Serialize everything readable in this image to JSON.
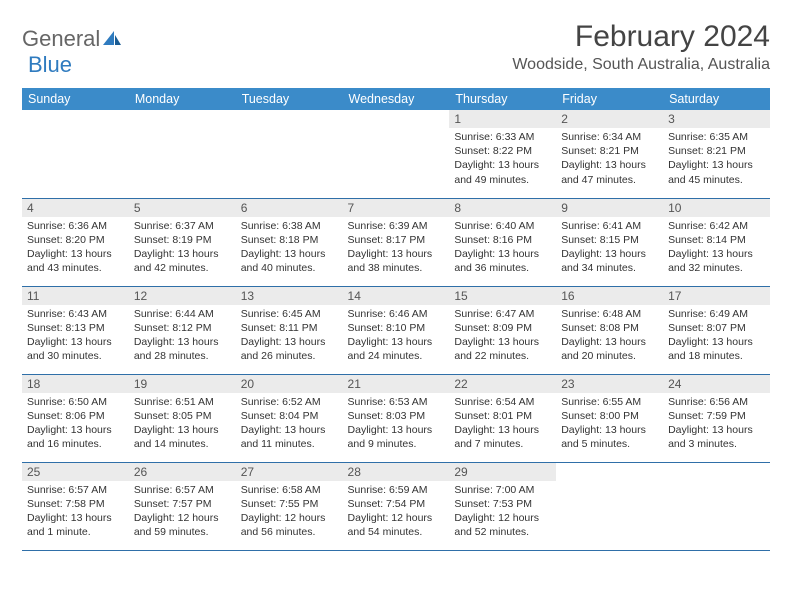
{
  "logo": {
    "text1": "General",
    "text2": "Blue"
  },
  "title": "February 2024",
  "location": "Woodside, South Australia, Australia",
  "colors": {
    "header_bg": "#3b8bc9",
    "header_text": "#ffffff",
    "daynum_bg": "#ebebeb",
    "row_border": "#2f6fa8"
  },
  "weekdays": [
    "Sunday",
    "Monday",
    "Tuesday",
    "Wednesday",
    "Thursday",
    "Friday",
    "Saturday"
  ],
  "weeks": [
    [
      null,
      null,
      null,
      null,
      {
        "n": "1",
        "sr": "Sunrise: 6:33 AM",
        "ss": "Sunset: 8:22 PM",
        "d1": "Daylight: 13 hours",
        "d2": "and 49 minutes."
      },
      {
        "n": "2",
        "sr": "Sunrise: 6:34 AM",
        "ss": "Sunset: 8:21 PM",
        "d1": "Daylight: 13 hours",
        "d2": "and 47 minutes."
      },
      {
        "n": "3",
        "sr": "Sunrise: 6:35 AM",
        "ss": "Sunset: 8:21 PM",
        "d1": "Daylight: 13 hours",
        "d2": "and 45 minutes."
      }
    ],
    [
      {
        "n": "4",
        "sr": "Sunrise: 6:36 AM",
        "ss": "Sunset: 8:20 PM",
        "d1": "Daylight: 13 hours",
        "d2": "and 43 minutes."
      },
      {
        "n": "5",
        "sr": "Sunrise: 6:37 AM",
        "ss": "Sunset: 8:19 PM",
        "d1": "Daylight: 13 hours",
        "d2": "and 42 minutes."
      },
      {
        "n": "6",
        "sr": "Sunrise: 6:38 AM",
        "ss": "Sunset: 8:18 PM",
        "d1": "Daylight: 13 hours",
        "d2": "and 40 minutes."
      },
      {
        "n": "7",
        "sr": "Sunrise: 6:39 AM",
        "ss": "Sunset: 8:17 PM",
        "d1": "Daylight: 13 hours",
        "d2": "and 38 minutes."
      },
      {
        "n": "8",
        "sr": "Sunrise: 6:40 AM",
        "ss": "Sunset: 8:16 PM",
        "d1": "Daylight: 13 hours",
        "d2": "and 36 minutes."
      },
      {
        "n": "9",
        "sr": "Sunrise: 6:41 AM",
        "ss": "Sunset: 8:15 PM",
        "d1": "Daylight: 13 hours",
        "d2": "and 34 minutes."
      },
      {
        "n": "10",
        "sr": "Sunrise: 6:42 AM",
        "ss": "Sunset: 8:14 PM",
        "d1": "Daylight: 13 hours",
        "d2": "and 32 minutes."
      }
    ],
    [
      {
        "n": "11",
        "sr": "Sunrise: 6:43 AM",
        "ss": "Sunset: 8:13 PM",
        "d1": "Daylight: 13 hours",
        "d2": "and 30 minutes."
      },
      {
        "n": "12",
        "sr": "Sunrise: 6:44 AM",
        "ss": "Sunset: 8:12 PM",
        "d1": "Daylight: 13 hours",
        "d2": "and 28 minutes."
      },
      {
        "n": "13",
        "sr": "Sunrise: 6:45 AM",
        "ss": "Sunset: 8:11 PM",
        "d1": "Daylight: 13 hours",
        "d2": "and 26 minutes."
      },
      {
        "n": "14",
        "sr": "Sunrise: 6:46 AM",
        "ss": "Sunset: 8:10 PM",
        "d1": "Daylight: 13 hours",
        "d2": "and 24 minutes."
      },
      {
        "n": "15",
        "sr": "Sunrise: 6:47 AM",
        "ss": "Sunset: 8:09 PM",
        "d1": "Daylight: 13 hours",
        "d2": "and 22 minutes."
      },
      {
        "n": "16",
        "sr": "Sunrise: 6:48 AM",
        "ss": "Sunset: 8:08 PM",
        "d1": "Daylight: 13 hours",
        "d2": "and 20 minutes."
      },
      {
        "n": "17",
        "sr": "Sunrise: 6:49 AM",
        "ss": "Sunset: 8:07 PM",
        "d1": "Daylight: 13 hours",
        "d2": "and 18 minutes."
      }
    ],
    [
      {
        "n": "18",
        "sr": "Sunrise: 6:50 AM",
        "ss": "Sunset: 8:06 PM",
        "d1": "Daylight: 13 hours",
        "d2": "and 16 minutes."
      },
      {
        "n": "19",
        "sr": "Sunrise: 6:51 AM",
        "ss": "Sunset: 8:05 PM",
        "d1": "Daylight: 13 hours",
        "d2": "and 14 minutes."
      },
      {
        "n": "20",
        "sr": "Sunrise: 6:52 AM",
        "ss": "Sunset: 8:04 PM",
        "d1": "Daylight: 13 hours",
        "d2": "and 11 minutes."
      },
      {
        "n": "21",
        "sr": "Sunrise: 6:53 AM",
        "ss": "Sunset: 8:03 PM",
        "d1": "Daylight: 13 hours",
        "d2": "and 9 minutes."
      },
      {
        "n": "22",
        "sr": "Sunrise: 6:54 AM",
        "ss": "Sunset: 8:01 PM",
        "d1": "Daylight: 13 hours",
        "d2": "and 7 minutes."
      },
      {
        "n": "23",
        "sr": "Sunrise: 6:55 AM",
        "ss": "Sunset: 8:00 PM",
        "d1": "Daylight: 13 hours",
        "d2": "and 5 minutes."
      },
      {
        "n": "24",
        "sr": "Sunrise: 6:56 AM",
        "ss": "Sunset: 7:59 PM",
        "d1": "Daylight: 13 hours",
        "d2": "and 3 minutes."
      }
    ],
    [
      {
        "n": "25",
        "sr": "Sunrise: 6:57 AM",
        "ss": "Sunset: 7:58 PM",
        "d1": "Daylight: 13 hours",
        "d2": "and 1 minute."
      },
      {
        "n": "26",
        "sr": "Sunrise: 6:57 AM",
        "ss": "Sunset: 7:57 PM",
        "d1": "Daylight: 12 hours",
        "d2": "and 59 minutes."
      },
      {
        "n": "27",
        "sr": "Sunrise: 6:58 AM",
        "ss": "Sunset: 7:55 PM",
        "d1": "Daylight: 12 hours",
        "d2": "and 56 minutes."
      },
      {
        "n": "28",
        "sr": "Sunrise: 6:59 AM",
        "ss": "Sunset: 7:54 PM",
        "d1": "Daylight: 12 hours",
        "d2": "and 54 minutes."
      },
      {
        "n": "29",
        "sr": "Sunrise: 7:00 AM",
        "ss": "Sunset: 7:53 PM",
        "d1": "Daylight: 12 hours",
        "d2": "and 52 minutes."
      },
      null,
      null
    ]
  ]
}
